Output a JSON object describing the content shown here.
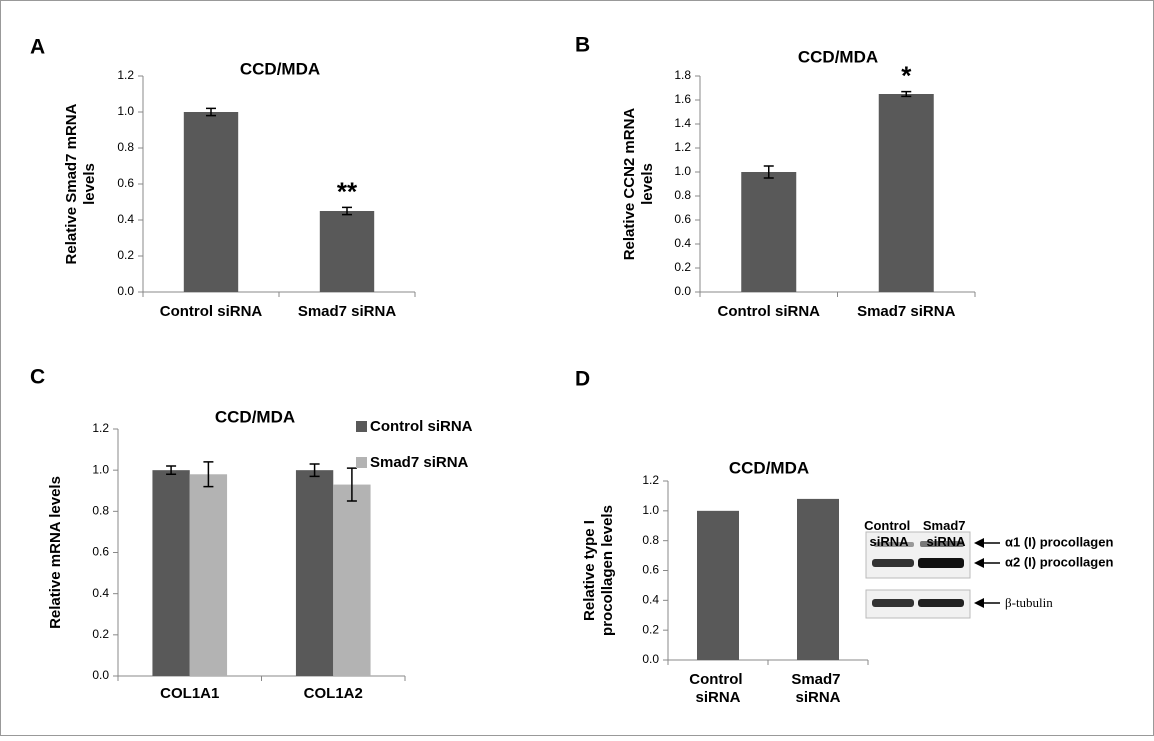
{
  "chart_data": [
    {
      "type": "bar",
      "panel": "A",
      "title": "CCD/MDA",
      "ylabel": [
        "Relative Smad7 mRNA",
        "levels"
      ],
      "categories": [
        "Control siRNA",
        "Smad7 siRNA"
      ],
      "values": [
        1.0,
        0.45
      ],
      "errors": [
        0.02,
        0.02
      ],
      "color": "#595959",
      "annotation": "**",
      "ylim": [
        0,
        1.2
      ],
      "yticks": [
        {
          "value": 0,
          "label": "0.0"
        },
        0.2,
        0.4,
        0.6,
        0.8,
        {
          "value": 1,
          "label": "1.0"
        },
        1.2
      ]
    },
    {
      "type": "bar",
      "panel": "B",
      "title": "CCD/MDA",
      "ylabel": [
        "Relative CCN2 mRNA",
        "levels"
      ],
      "categories": [
        "Control siRNA",
        "Smad7 siRNA"
      ],
      "values": [
        1.0,
        1.65
      ],
      "errors": [
        0.05,
        0.02
      ],
      "color": "#595959",
      "annotation": "*",
      "ylim": [
        0,
        1.8
      ],
      "yticks": [
        {
          "value": 0,
          "label": "0.0"
        },
        0.2,
        0.4,
        0.6,
        0.8,
        {
          "value": 1,
          "label": "1.0"
        },
        1.2,
        1.4,
        1.6,
        1.8
      ]
    },
    {
      "type": "bar",
      "panel": "C",
      "title": "CCD/MDA",
      "ylabel": [
        "Relative mRNA levels"
      ],
      "categories": [
        "COL1A1",
        "COL1A2"
      ],
      "series": [
        {
          "name": "Control siRNA",
          "color": "#595959",
          "values": [
            1.0,
            1.0
          ],
          "errors": [
            0.02,
            0.03
          ]
        },
        {
          "name": "Smad7 siRNA",
          "color": "#b3b3b3",
          "values": [
            0.98,
            0.93
          ],
          "errors": [
            0.06,
            0.08
          ]
        }
      ],
      "ylim": [
        0,
        1.2
      ],
      "yticks": [
        {
          "value": 0,
          "label": "0.0"
        },
        0.2,
        0.4,
        0.6,
        0.8,
        {
          "value": 1,
          "label": "1.0"
        },
        1.2
      ]
    },
    {
      "type": "bar",
      "panel": "D",
      "title": "CCD/MDA",
      "ylabel": [
        "Relative type I",
        "procollagen levels"
      ],
      "categories": [
        "Control siRNA",
        "Smad7 siRNA"
      ],
      "values": [
        1.0,
        1.08
      ],
      "color": "#595959",
      "ylim": [
        0,
        1.2
      ],
      "yticks": [
        {
          "value": 0,
          "label": "0.0"
        },
        0.2,
        0.4,
        0.6,
        0.8,
        {
          "value": 1,
          "label": "1.0"
        },
        1.2
      ]
    }
  ],
  "blot": {
    "lanes": [
      "Control siRNA",
      "Smad7 siRNA"
    ],
    "bands": [
      "α1 (I) procollagen",
      "α2 (I) procollagen",
      "β-tubulin"
    ]
  }
}
